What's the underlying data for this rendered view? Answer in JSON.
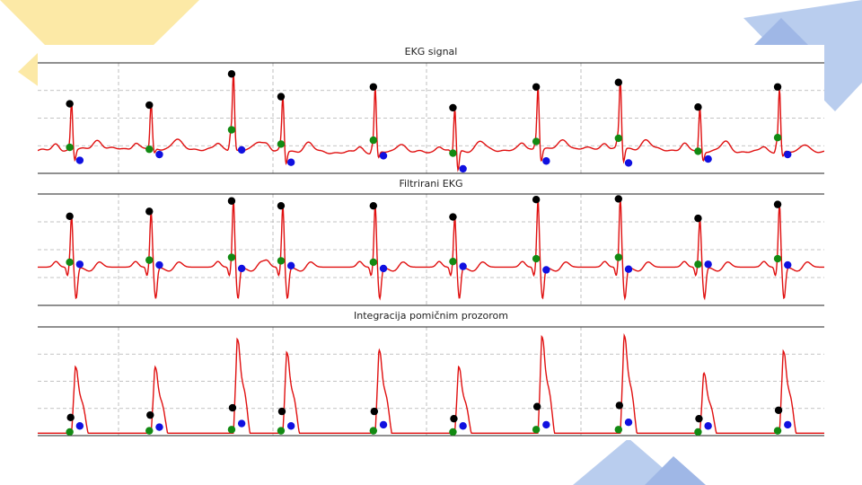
{
  "theme": {
    "decor_yellow": "#fce9a6",
    "decor_blue": "#b9cdee",
    "decor_blue_dark": "#9fb7e6",
    "signal_color": "#e01010",
    "r_peak_color": "#000000",
    "q_point_color": "#128a12",
    "s_point_color": "#1010e0",
    "grid_color": "#b0b0b0"
  },
  "chart_data": [
    {
      "type": "line",
      "title": "EKG signal",
      "xlabel": "",
      "ylabel": "",
      "grid": true,
      "beat_times": [
        0.37,
        1.24,
        2.14,
        2.68,
        3.69,
        4.56,
        5.47,
        6.37,
        7.24,
        8.11
      ],
      "series": [
        {
          "values": [
            0.72,
            0.7,
            1.18,
            0.83,
            0.98,
            0.66,
            0.98,
            1.05,
            0.67,
            0.98
          ]
        }
      ],
      "r_peaks": [
        0.72,
        0.7,
        1.18,
        0.83,
        0.98,
        0.66,
        0.98,
        1.05,
        0.67,
        0.98
      ],
      "q_points": [
        0.05,
        0.02,
        0.32,
        0.1,
        0.16,
        -0.04,
        0.14,
        0.19,
        -0.01,
        0.2
      ],
      "s_points": [
        -0.15,
        -0.06,
        0.01,
        -0.18,
        -0.08,
        -0.28,
        -0.16,
        -0.19,
        -0.13,
        -0.06
      ]
    },
    {
      "type": "line",
      "title": "Filtrirani EKG",
      "xlabel": "",
      "ylabel": "",
      "grid": true,
      "beat_times": [
        0.37,
        1.24,
        2.14,
        2.68,
        3.69,
        4.56,
        5.47,
        6.37,
        7.24,
        8.11
      ],
      "series": [
        {
          "values": [
            0.73,
            0.8,
            0.95,
            0.88,
            0.88,
            0.72,
            0.97,
            0.98,
            0.7,
            0.9
          ]
        }
      ],
      "r_peaks": [
        0.73,
        0.8,
        0.95,
        0.88,
        0.88,
        0.72,
        0.97,
        0.98,
        0.7,
        0.9
      ],
      "q_points": [
        0.07,
        0.1,
        0.14,
        0.09,
        0.07,
        0.08,
        0.12,
        0.14,
        0.04,
        0.12
      ],
      "s_points": [
        0.04,
        0.03,
        -0.02,
        0.02,
        -0.02,
        0.01,
        -0.04,
        -0.03,
        0.04,
        0.03
      ]
    },
    {
      "type": "line",
      "title": "Integracija pomičnim prozorom",
      "xlabel": "",
      "ylabel": "",
      "grid": true,
      "beat_times": [
        0.37,
        1.24,
        2.14,
        2.68,
        3.69,
        4.56,
        5.47,
        6.37,
        7.24,
        8.11
      ],
      "series": [
        {
          "values": [
            0.55,
            0.55,
            0.78,
            0.67,
            0.69,
            0.55,
            0.8,
            0.81,
            0.5,
            0.68
          ]
        }
      ],
      "r_peaks": [
        0.13,
        0.15,
        0.21,
        0.18,
        0.18,
        0.12,
        0.22,
        0.23,
        0.12,
        0.19
      ],
      "q_points": [
        0.01,
        0.02,
        0.03,
        0.02,
        0.02,
        0.01,
        0.03,
        0.03,
        0.01,
        0.02
      ],
      "s_points": [
        0.06,
        0.05,
        0.08,
        0.06,
        0.07,
        0.06,
        0.07,
        0.09,
        0.06,
        0.07
      ]
    }
  ]
}
